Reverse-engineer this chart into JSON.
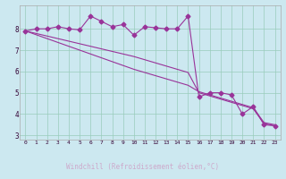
{
  "xlabel": "Windchill (Refroidissement éolien,°C)",
  "background_color": "#cce8f0",
  "plot_color": "#993399",
  "line_color": "#993399",
  "grid_color": "#99ccbb",
  "xlabel_bg": "#330033",
  "xlabel_fg": "#ccaacc",
  "xlim_min": -0.5,
  "xlim_max": 23.5,
  "ylim_min": 2.8,
  "ylim_max": 9.1,
  "yticks": [
    3,
    4,
    5,
    6,
    7,
    8
  ],
  "xticks": [
    0,
    1,
    2,
    3,
    4,
    5,
    6,
    7,
    8,
    9,
    10,
    11,
    12,
    13,
    14,
    15,
    16,
    17,
    18,
    19,
    20,
    21,
    22,
    23
  ],
  "series1_x": [
    0,
    1,
    2,
    3,
    4,
    5,
    6,
    7,
    8,
    9,
    10,
    11,
    12,
    13,
    14,
    15,
    16,
    17,
    18,
    19,
    20,
    21,
    22,
    23
  ],
  "series1_y": [
    7.9,
    8.0,
    8.0,
    8.1,
    8.0,
    7.95,
    8.6,
    8.35,
    8.1,
    8.2,
    7.7,
    8.1,
    8.05,
    8.0,
    8.0,
    8.6,
    4.8,
    5.0,
    5.0,
    4.9,
    4.0,
    4.35,
    3.5,
    3.45
  ],
  "series2_x": [
    0,
    1,
    2,
    3,
    4,
    5,
    6,
    7,
    8,
    9,
    10,
    11,
    12,
    13,
    14,
    15,
    16,
    17,
    18,
    19,
    20,
    21,
    22,
    23
  ],
  "series2_y": [
    7.9,
    7.78,
    7.66,
    7.54,
    7.42,
    7.3,
    7.18,
    7.06,
    6.94,
    6.82,
    6.7,
    6.55,
    6.4,
    6.25,
    6.1,
    5.95,
    5.0,
    4.85,
    4.7,
    4.55,
    4.4,
    4.25,
    3.55,
    3.45
  ],
  "series3_x": [
    0,
    1,
    2,
    3,
    4,
    5,
    6,
    7,
    8,
    9,
    10,
    11,
    12,
    13,
    14,
    15,
    16,
    17,
    18,
    19,
    20,
    21,
    22,
    23
  ],
  "series3_y": [
    7.9,
    7.72,
    7.54,
    7.36,
    7.18,
    7.0,
    6.82,
    6.64,
    6.46,
    6.28,
    6.1,
    5.95,
    5.8,
    5.65,
    5.5,
    5.35,
    5.05,
    4.9,
    4.75,
    4.6,
    4.45,
    4.3,
    3.6,
    3.5
  ],
  "marker": "D",
  "markersize": 2.5,
  "linewidth": 0.8
}
